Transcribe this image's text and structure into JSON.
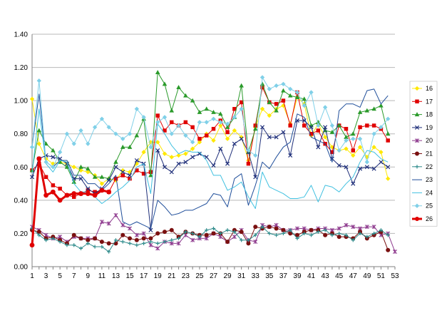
{
  "chart_data": {
    "type": "line",
    "title": "",
    "xlabel": "",
    "ylabel": "",
    "ylim": [
      0,
      1.4
    ],
    "yticks": [
      "0.00",
      "0.20",
      "0.40",
      "0.60",
      "0.80",
      "1.00",
      "1.20",
      "1.40"
    ],
    "xlim": [
      1,
      53
    ],
    "xticks": [
      "1",
      "3",
      "5",
      "7",
      "9",
      "11",
      "13",
      "15",
      "17",
      "19",
      "21",
      "23",
      "25",
      "27",
      "29",
      "31",
      "33",
      "35",
      "37",
      "39",
      "41",
      "43",
      "45",
      "47",
      "49",
      "51",
      "53"
    ],
    "grid": "horizontal",
    "legend": "right",
    "series": [
      {
        "name": "16",
        "color": "#FFE800",
        "marker": "diamond",
        "width": 1,
        "x": [
          1,
          2,
          3,
          4,
          5,
          6,
          7,
          8,
          9,
          10,
          11,
          12,
          13,
          14,
          15,
          16,
          17,
          18,
          19,
          20,
          21,
          22,
          23,
          24,
          25,
          26,
          27,
          28,
          29,
          30,
          31,
          32,
          33,
          34,
          35,
          36,
          37,
          38,
          39,
          40,
          41,
          42,
          43,
          44,
          45,
          46,
          47,
          48,
          49,
          50,
          51,
          52
        ],
        "y": [
          1.01,
          0.74,
          0.65,
          0.62,
          0.63,
          0.62,
          0.6,
          0.58,
          0.57,
          0.55,
          0.5,
          0.53,
          0.52,
          0.58,
          0.57,
          0.62,
          0.69,
          0.75,
          0.75,
          0.68,
          0.66,
          0.67,
          0.68,
          0.71,
          0.75,
          0.8,
          0.76,
          0.85,
          0.77,
          0.82,
          0.78,
          0.64,
          0.84,
          0.95,
          0.91,
          0.95,
          0.97,
          0.86,
          1.02,
          0.98,
          0.79,
          0.86,
          0.78,
          0.72,
          0.7,
          0.71,
          0.67,
          0.72,
          0.66,
          0.72,
          0.69,
          0.53
        ]
      },
      {
        "name": "17",
        "color": "#E00000",
        "marker": "square",
        "width": 1,
        "x": [
          1,
          2,
          3,
          4,
          5,
          6,
          7,
          8,
          9,
          10,
          11,
          12,
          13,
          14,
          15,
          16,
          17,
          18,
          19,
          20,
          21,
          22,
          23,
          24,
          25,
          26,
          27,
          28,
          29,
          30,
          31,
          32,
          33,
          34,
          35,
          36,
          37,
          38,
          39,
          40,
          41,
          42,
          43,
          44,
          45,
          46,
          47,
          48,
          49,
          50,
          51,
          52
        ],
        "y": [
          0.58,
          0.62,
          0.54,
          0.49,
          0.47,
          0.43,
          0.42,
          0.44,
          0.46,
          0.45,
          0.46,
          0.45,
          0.53,
          0.55,
          0.53,
          0.58,
          0.56,
          0.57,
          0.91,
          0.82,
          0.87,
          0.85,
          0.87,
          0.84,
          0.77,
          0.79,
          0.83,
          0.88,
          0.81,
          0.95,
          0.99,
          0.62,
          0.85,
          1.08,
          0.99,
          0.98,
          1.0,
          0.85,
          1.05,
          0.85,
          0.8,
          0.82,
          0.74,
          0.69,
          0.85,
          0.83,
          0.7,
          0.84,
          0.85,
          0.85,
          0.83,
          0.76
        ]
      },
      {
        "name": "18",
        "color": "#2A9A2A",
        "marker": "triangle",
        "width": 1,
        "x": [
          1,
          2,
          3,
          4,
          5,
          6,
          7,
          8,
          9,
          10,
          11,
          12,
          13,
          14,
          15,
          16,
          17,
          18,
          19,
          20,
          21,
          22,
          23,
          24,
          25,
          26,
          27,
          28,
          29,
          30,
          31,
          32,
          33,
          34,
          35,
          36,
          37,
          38,
          39,
          40,
          41,
          42,
          43,
          44,
          45,
          46,
          47,
          48,
          49,
          50,
          51,
          52
        ],
        "y": [
          0.58,
          0.82,
          0.74,
          0.7,
          0.63,
          0.6,
          0.51,
          0.6,
          0.59,
          0.54,
          0.54,
          0.53,
          0.63,
          0.72,
          0.72,
          0.79,
          0.89,
          0.55,
          1.17,
          1.1,
          0.94,
          1.08,
          1.03,
          1.0,
          0.93,
          0.95,
          0.93,
          0.92,
          0.84,
          0.9,
          1.09,
          0.69,
          0.83,
          1.1,
          0.99,
          0.94,
          1.06,
          1.03,
          1.02,
          1.01,
          0.85,
          0.87,
          0.82,
          0.81,
          0.85,
          0.78,
          0.8,
          0.93,
          0.94,
          0.95,
          0.97,
          0.8
        ]
      },
      {
        "name": "19",
        "color": "#1F2F7A",
        "marker": "x",
        "width": 1,
        "x": [
          1,
          2,
          3,
          4,
          5,
          6,
          7,
          8,
          9,
          10,
          11,
          12,
          13,
          14,
          15,
          16,
          17,
          18,
          19,
          20,
          21,
          22,
          23,
          24,
          25,
          26,
          27,
          28,
          29,
          30,
          31,
          32,
          33,
          34,
          35,
          36,
          37,
          38,
          39,
          40,
          41,
          42,
          43,
          44,
          45,
          46,
          47,
          48,
          49,
          50,
          51,
          52
        ],
        "y": [
          0.54,
          0.65,
          0.67,
          0.66,
          0.65,
          0.62,
          0.53,
          0.53,
          0.47,
          0.44,
          0.47,
          0.52,
          0.6,
          0.57,
          0.55,
          0.64,
          0.62,
          0.22,
          0.7,
          0.6,
          0.57,
          0.62,
          0.63,
          0.66,
          0.68,
          0.66,
          0.61,
          0.71,
          0.62,
          0.74,
          0.77,
          0.69,
          0.54,
          0.84,
          0.78,
          0.78,
          0.81,
          0.67,
          0.88,
          0.88,
          0.84,
          0.72,
          0.84,
          0.65,
          0.61,
          0.6,
          0.5,
          0.59,
          0.6,
          0.59,
          0.63,
          0.6
        ]
      },
      {
        "name": "20",
        "color": "#8E3A8E",
        "marker": "star",
        "width": 1,
        "x": [
          1,
          2,
          3,
          4,
          5,
          6,
          7,
          8,
          9,
          10,
          11,
          12,
          13,
          14,
          15,
          16,
          17,
          18,
          19,
          20,
          21,
          22,
          23,
          24,
          25,
          26,
          27,
          28,
          29,
          30,
          31,
          32,
          33,
          34,
          35,
          36,
          37,
          38,
          39,
          40,
          41,
          42,
          43,
          44,
          45,
          46,
          47,
          48,
          49,
          50,
          51,
          52,
          53
        ],
        "y": [
          0.24,
          0.22,
          0.19,
          0.17,
          0.18,
          0.15,
          0.18,
          0.17,
          0.17,
          0.17,
          0.27,
          0.26,
          0.31,
          0.25,
          0.23,
          0.19,
          0.2,
          0.13,
          0.11,
          0.15,
          0.14,
          0.14,
          0.19,
          0.16,
          0.17,
          0.17,
          0.2,
          0.18,
          0.15,
          0.18,
          0.22,
          0.16,
          0.15,
          0.25,
          0.24,
          0.25,
          0.22,
          0.22,
          0.23,
          0.23,
          0.22,
          0.23,
          0.23,
          0.22,
          0.23,
          0.25,
          0.24,
          0.23,
          0.24,
          0.24,
          0.19,
          0.2,
          0.09
        ]
      },
      {
        "name": "21",
        "color": "#7A1010",
        "marker": "circle",
        "width": 1,
        "x": [
          1,
          2,
          3,
          4,
          5,
          6,
          7,
          8,
          9,
          10,
          11,
          12,
          13,
          14,
          15,
          16,
          17,
          18,
          19,
          20,
          21,
          22,
          23,
          24,
          25,
          26,
          27,
          28,
          29,
          30,
          31,
          32,
          33,
          34,
          35,
          36,
          37,
          38,
          39,
          40,
          41,
          42,
          43,
          44,
          45,
          46,
          47,
          48,
          49,
          50,
          51,
          52
        ],
        "y": [
          0.22,
          0.21,
          0.17,
          0.18,
          0.16,
          0.14,
          0.19,
          0.17,
          0.16,
          0.17,
          0.15,
          0.14,
          0.14,
          0.19,
          0.17,
          0.16,
          0.17,
          0.17,
          0.2,
          0.21,
          0.22,
          0.18,
          0.21,
          0.2,
          0.19,
          0.19,
          0.2,
          0.2,
          0.15,
          0.22,
          0.21,
          0.14,
          0.24,
          0.23,
          0.24,
          0.23,
          0.22,
          0.2,
          0.19,
          0.21,
          0.22,
          0.22,
          0.19,
          0.2,
          0.18,
          0.18,
          0.17,
          0.21,
          0.17,
          0.19,
          0.21,
          0.1
        ]
      },
      {
        "name": "22",
        "color": "#2E8B8B",
        "marker": "plus",
        "width": 1,
        "x": [
          1,
          2,
          3,
          4,
          5,
          6,
          7,
          8,
          9,
          10,
          11,
          12,
          13,
          14,
          15,
          16,
          17,
          18,
          19,
          20,
          21,
          22,
          23,
          24,
          25,
          26,
          27,
          28,
          29,
          30,
          31,
          32,
          33,
          34,
          35,
          36,
          37,
          38,
          39,
          40,
          41,
          42,
          43,
          44,
          45,
          46,
          47,
          48,
          49,
          50,
          51,
          52
        ],
        "y": [
          0.23,
          0.19,
          0.16,
          0.17,
          0.15,
          0.13,
          0.13,
          0.11,
          0.14,
          0.12,
          0.12,
          0.09,
          0.16,
          0.15,
          0.14,
          0.13,
          0.14,
          0.15,
          0.14,
          0.15,
          0.16,
          0.17,
          0.21,
          0.2,
          0.18,
          0.22,
          0.23,
          0.2,
          0.22,
          0.21,
          0.16,
          0.16,
          0.19,
          0.24,
          0.2,
          0.19,
          0.2,
          0.22,
          0.17,
          0.2,
          0.19,
          0.21,
          0.22,
          0.19,
          0.2,
          0.19,
          0.16,
          0.2,
          0.18,
          0.2,
          0.22,
          0.19
        ]
      },
      {
        "name": "23",
        "color": "#1F4E9A",
        "marker": "none",
        "width": 1,
        "x": [
          1,
          2,
          3,
          4,
          5,
          6,
          7,
          8,
          9,
          10,
          11,
          12,
          13,
          14,
          15,
          16,
          17,
          18,
          19,
          20,
          21,
          22,
          23,
          24,
          25,
          26,
          27,
          28,
          29,
          30,
          31,
          32,
          33,
          34,
          35,
          36,
          37,
          38,
          39,
          40,
          41,
          42,
          43,
          44,
          45,
          46,
          47,
          48,
          49,
          50,
          51,
          52
        ],
        "y": [
          0.72,
          1.04,
          0.63,
          0.6,
          0.64,
          0.64,
          0.55,
          0.55,
          0.5,
          0.5,
          0.46,
          0.5,
          0.55,
          0.27,
          0.25,
          0.27,
          0.25,
          0.23,
          0.4,
          0.36,
          0.31,
          0.32,
          0.34,
          0.34,
          0.36,
          0.38,
          0.44,
          0.43,
          0.36,
          0.53,
          0.56,
          0.37,
          0.49,
          0.63,
          0.59,
          0.66,
          0.72,
          0.75,
          0.92,
          0.9,
          0.78,
          0.76,
          0.74,
          0.63,
          0.94,
          0.98,
          0.98,
          0.96,
          1.06,
          1.07,
          0.98,
          1.03
        ]
      },
      {
        "name": "24",
        "color": "#40C0E0",
        "marker": "none",
        "width": 1,
        "x": [
          1,
          2,
          3,
          4,
          5,
          6,
          7,
          8,
          9,
          10,
          11,
          12,
          13,
          14,
          15,
          16,
          17,
          18,
          19,
          20,
          21,
          22,
          23,
          24,
          25,
          26,
          27,
          28,
          29,
          30,
          31,
          32,
          33,
          34,
          35,
          36,
          37,
          38,
          39,
          40,
          41,
          42,
          43,
          44,
          45,
          46,
          47,
          48,
          49,
          50,
          51,
          52
        ],
        "y": [
          0.56,
          0.95,
          0.62,
          0.57,
          0.64,
          0.63,
          0.5,
          0.45,
          0.45,
          0.42,
          0.38,
          0.41,
          0.45,
          0.48,
          0.52,
          0.6,
          0.62,
          0.44,
          0.86,
          0.8,
          0.73,
          0.68,
          0.7,
          0.69,
          0.69,
          0.64,
          0.55,
          0.55,
          0.46,
          0.48,
          0.51,
          0.42,
          0.35,
          0.57,
          0.48,
          0.46,
          0.44,
          0.41,
          0.41,
          0.42,
          0.49,
          0.39,
          0.49,
          0.48,
          0.45,
          0.5,
          0.54,
          0.63,
          0.7,
          0.69,
          0.65,
          0.63
        ]
      },
      {
        "name": "25",
        "color": "#80D0E8",
        "marker": "diamond",
        "width": 1,
        "x": [
          1,
          2,
          3,
          4,
          5,
          6,
          7,
          8,
          9,
          10,
          11,
          12,
          13,
          14,
          15,
          16,
          17,
          18,
          19,
          20,
          21,
          22,
          23,
          24,
          25,
          26,
          27,
          28,
          29,
          30,
          31,
          32,
          33,
          34,
          35,
          36,
          37,
          38,
          39,
          40,
          41,
          42,
          43,
          44,
          45,
          46,
          47,
          48,
          49,
          50,
          51,
          52
        ],
        "y": [
          0.72,
          1.12,
          0.63,
          0.6,
          0.69,
          0.8,
          0.74,
          0.82,
          0.74,
          0.84,
          0.89,
          0.84,
          0.8,
          0.77,
          0.8,
          0.95,
          0.9,
          0.72,
          0.87,
          0.9,
          0.8,
          0.85,
          0.79,
          0.75,
          0.87,
          0.87,
          0.89,
          0.87,
          0.86,
          0.9,
          0.95,
          0.7,
          0.67,
          1.14,
          1.07,
          1.09,
          1.1,
          1.07,
          1.05,
          0.97,
          1.05,
          0.85,
          0.96,
          0.85,
          0.7,
          0.76,
          0.77,
          0.77,
          0.63,
          0.8,
          0.84,
          0.89
        ]
      },
      {
        "name": "26",
        "color": "#E00000",
        "marker": "circle",
        "width": 3,
        "x": [
          1,
          2,
          3,
          4,
          5,
          6,
          7,
          8,
          9,
          10,
          11,
          12
        ],
        "y": [
          0.13,
          0.65,
          0.43,
          0.45,
          0.4,
          0.43,
          0.44,
          0.44,
          0.44,
          0.43,
          0.46,
          0.45
        ]
      }
    ]
  }
}
